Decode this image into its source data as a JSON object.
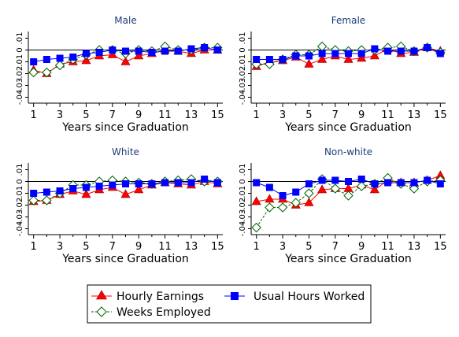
{
  "chart_data": [
    {
      "type": "line",
      "title": "Male",
      "xlabel": "Years since Graduation",
      "ylabel": "",
      "x": [
        1,
        2,
        3,
        4,
        5,
        6,
        7,
        8,
        9,
        10,
        11,
        12,
        13,
        14,
        15
      ],
      "xticks": [
        1,
        3,
        5,
        7,
        9,
        11,
        13,
        15
      ],
      "yticks": [
        0.01,
        0,
        -0.01,
        -0.02,
        -0.03,
        -0.04
      ],
      "ytick_labels": [
        ".01",
        "0",
        "-.01",
        "-.02",
        "-.03",
        "-.04"
      ],
      "ylim": [
        -0.045,
        0.013
      ],
      "series": [
        {
          "name": "Hourly Earnings",
          "values": [
            -0.017,
            -0.02,
            -0.012,
            -0.01,
            -0.009,
            -0.005,
            -0.004,
            -0.01,
            -0.005,
            -0.003,
            0.0,
            -0.001,
            -0.003,
            0.0,
            0.0
          ]
        },
        {
          "name": "Weeks Employed",
          "values": [
            -0.019,
            -0.019,
            -0.013,
            -0.008,
            -0.004,
            0.0,
            0.0,
            -0.003,
            0.0,
            -0.001,
            0.003,
            0.0,
            0.0,
            0.002,
            0.002
          ]
        },
        {
          "name": "Usual Hours Worked",
          "values": [
            -0.01,
            -0.008,
            -0.007,
            -0.006,
            -0.003,
            -0.002,
            0.0,
            -0.001,
            -0.001,
            -0.002,
            -0.001,
            -0.001,
            0.001,
            0.002,
            0.0
          ]
        }
      ]
    },
    {
      "type": "line",
      "title": "Female",
      "xlabel": "Years since Graduation",
      "ylabel": "",
      "x": [
        1,
        2,
        3,
        4,
        5,
        6,
        7,
        8,
        9,
        10,
        11,
        12,
        13,
        14,
        15
      ],
      "xticks": [
        1,
        3,
        5,
        7,
        9,
        11,
        13,
        15
      ],
      "yticks": [
        0.01,
        0,
        -0.01,
        -0.02,
        -0.03,
        -0.04
      ],
      "ytick_labels": [
        ".01",
        "0",
        "-.01",
        "-.02",
        "-.03",
        "-.04"
      ],
      "ylim": [
        -0.045,
        0.013
      ],
      "series": [
        {
          "name": "Hourly Earnings",
          "values": [
            -0.014,
            -0.01,
            -0.009,
            -0.006,
            -0.012,
            -0.008,
            -0.005,
            -0.008,
            -0.007,
            -0.005,
            0.001,
            -0.003,
            -0.002,
            0.002,
            -0.001
          ]
        },
        {
          "name": "Weeks Employed",
          "values": [
            -0.012,
            -0.012,
            -0.008,
            -0.004,
            -0.004,
            0.003,
            0.0,
            -0.001,
            0.0,
            0.0,
            0.002,
            0.003,
            -0.001,
            0.002,
            -0.002
          ]
        },
        {
          "name": "Usual Hours Worked",
          "values": [
            -0.008,
            -0.008,
            -0.008,
            -0.005,
            -0.005,
            -0.003,
            -0.003,
            -0.003,
            -0.003,
            0.001,
            -0.001,
            -0.001,
            -0.001,
            0.002,
            -0.003
          ]
        }
      ]
    },
    {
      "type": "line",
      "title": "White",
      "xlabel": "Years since Graduation",
      "ylabel": "",
      "x": [
        1,
        2,
        3,
        4,
        5,
        6,
        7,
        8,
        9,
        10,
        11,
        12,
        13,
        14,
        15
      ],
      "xticks": [
        1,
        3,
        5,
        7,
        9,
        11,
        13,
        15
      ],
      "yticks": [
        0.01,
        0,
        -0.01,
        -0.02,
        -0.03,
        -0.04
      ],
      "ytick_labels": [
        ".01",
        "0",
        "-.01",
        "-.02",
        "-.03",
        "-.04"
      ],
      "ylim": [
        -0.045,
        0.013
      ],
      "series": [
        {
          "name": "Hourly Earnings",
          "values": [
            -0.017,
            -0.016,
            -0.011,
            -0.008,
            -0.011,
            -0.007,
            -0.005,
            -0.011,
            -0.007,
            -0.003,
            -0.001,
            -0.002,
            -0.003,
            0.0,
            -0.002
          ]
        },
        {
          "name": "Weeks Employed",
          "values": [
            -0.016,
            -0.016,
            -0.01,
            -0.003,
            -0.003,
            0.0,
            0.001,
            0.0,
            -0.001,
            -0.002,
            0.0,
            0.001,
            0.002,
            0.0,
            0.0
          ]
        },
        {
          "name": "Usual Hours Worked",
          "values": [
            -0.01,
            -0.009,
            -0.008,
            -0.006,
            -0.005,
            -0.004,
            -0.003,
            -0.002,
            -0.002,
            -0.002,
            -0.001,
            -0.001,
            -0.001,
            0.002,
            -0.001
          ]
        }
      ]
    },
    {
      "type": "line",
      "title": "Non-white",
      "xlabel": "Years since Graduation",
      "ylabel": "",
      "x": [
        1,
        2,
        3,
        4,
        5,
        6,
        7,
        8,
        9,
        10,
        11,
        12,
        13,
        14,
        15
      ],
      "xticks": [
        1,
        3,
        5,
        7,
        9,
        11,
        13,
        15
      ],
      "yticks": [
        0.01,
        0,
        -0.01,
        -0.02,
        -0.03,
        -0.04
      ],
      "ytick_labels": [
        ".01",
        "0",
        "-.01",
        "-.02",
        "-.03",
        "-.04"
      ],
      "ylim": [
        -0.045,
        0.013
      ],
      "series": [
        {
          "name": "Hourly Earnings",
          "values": [
            -0.017,
            -0.015,
            -0.015,
            -0.02,
            -0.018,
            -0.007,
            -0.006,
            -0.006,
            -0.003,
            -0.007,
            0.001,
            -0.001,
            -0.001,
            0.001,
            0.005
          ]
        },
        {
          "name": "Weeks Employed",
          "values": [
            -0.039,
            -0.022,
            -0.022,
            -0.018,
            -0.01,
            0.002,
            -0.006,
            -0.012,
            -0.004,
            -0.002,
            0.003,
            -0.002,
            -0.006,
            0.0,
            0.001
          ]
        },
        {
          "name": "Usual Hours Worked",
          "values": [
            -0.001,
            -0.005,
            -0.012,
            -0.009,
            -0.002,
            0.001,
            0.001,
            0.0,
            0.002,
            -0.002,
            -0.001,
            -0.001,
            -0.001,
            0.001,
            -0.002
          ]
        }
      ]
    }
  ],
  "legend": {
    "items": [
      {
        "label": "Hourly Earnings",
        "marker": "triangle",
        "color": "#ff0000",
        "line": "#ff0000"
      },
      {
        "label": "Usual Hours Worked",
        "marker": "square",
        "color": "#0000ff",
        "line": "#0000ff"
      },
      {
        "label": "Weeks Employed",
        "marker": "diamond-hollow",
        "color": "#ffffff",
        "line": "#006400"
      }
    ]
  },
  "colors": {
    "title": "#1e3c78",
    "axis": "#000000",
    "grid": "#dddddd",
    "hourly_earnings": "#ff0000",
    "usual_hours": "#0000ff",
    "weeks_employed": "#006400"
  }
}
